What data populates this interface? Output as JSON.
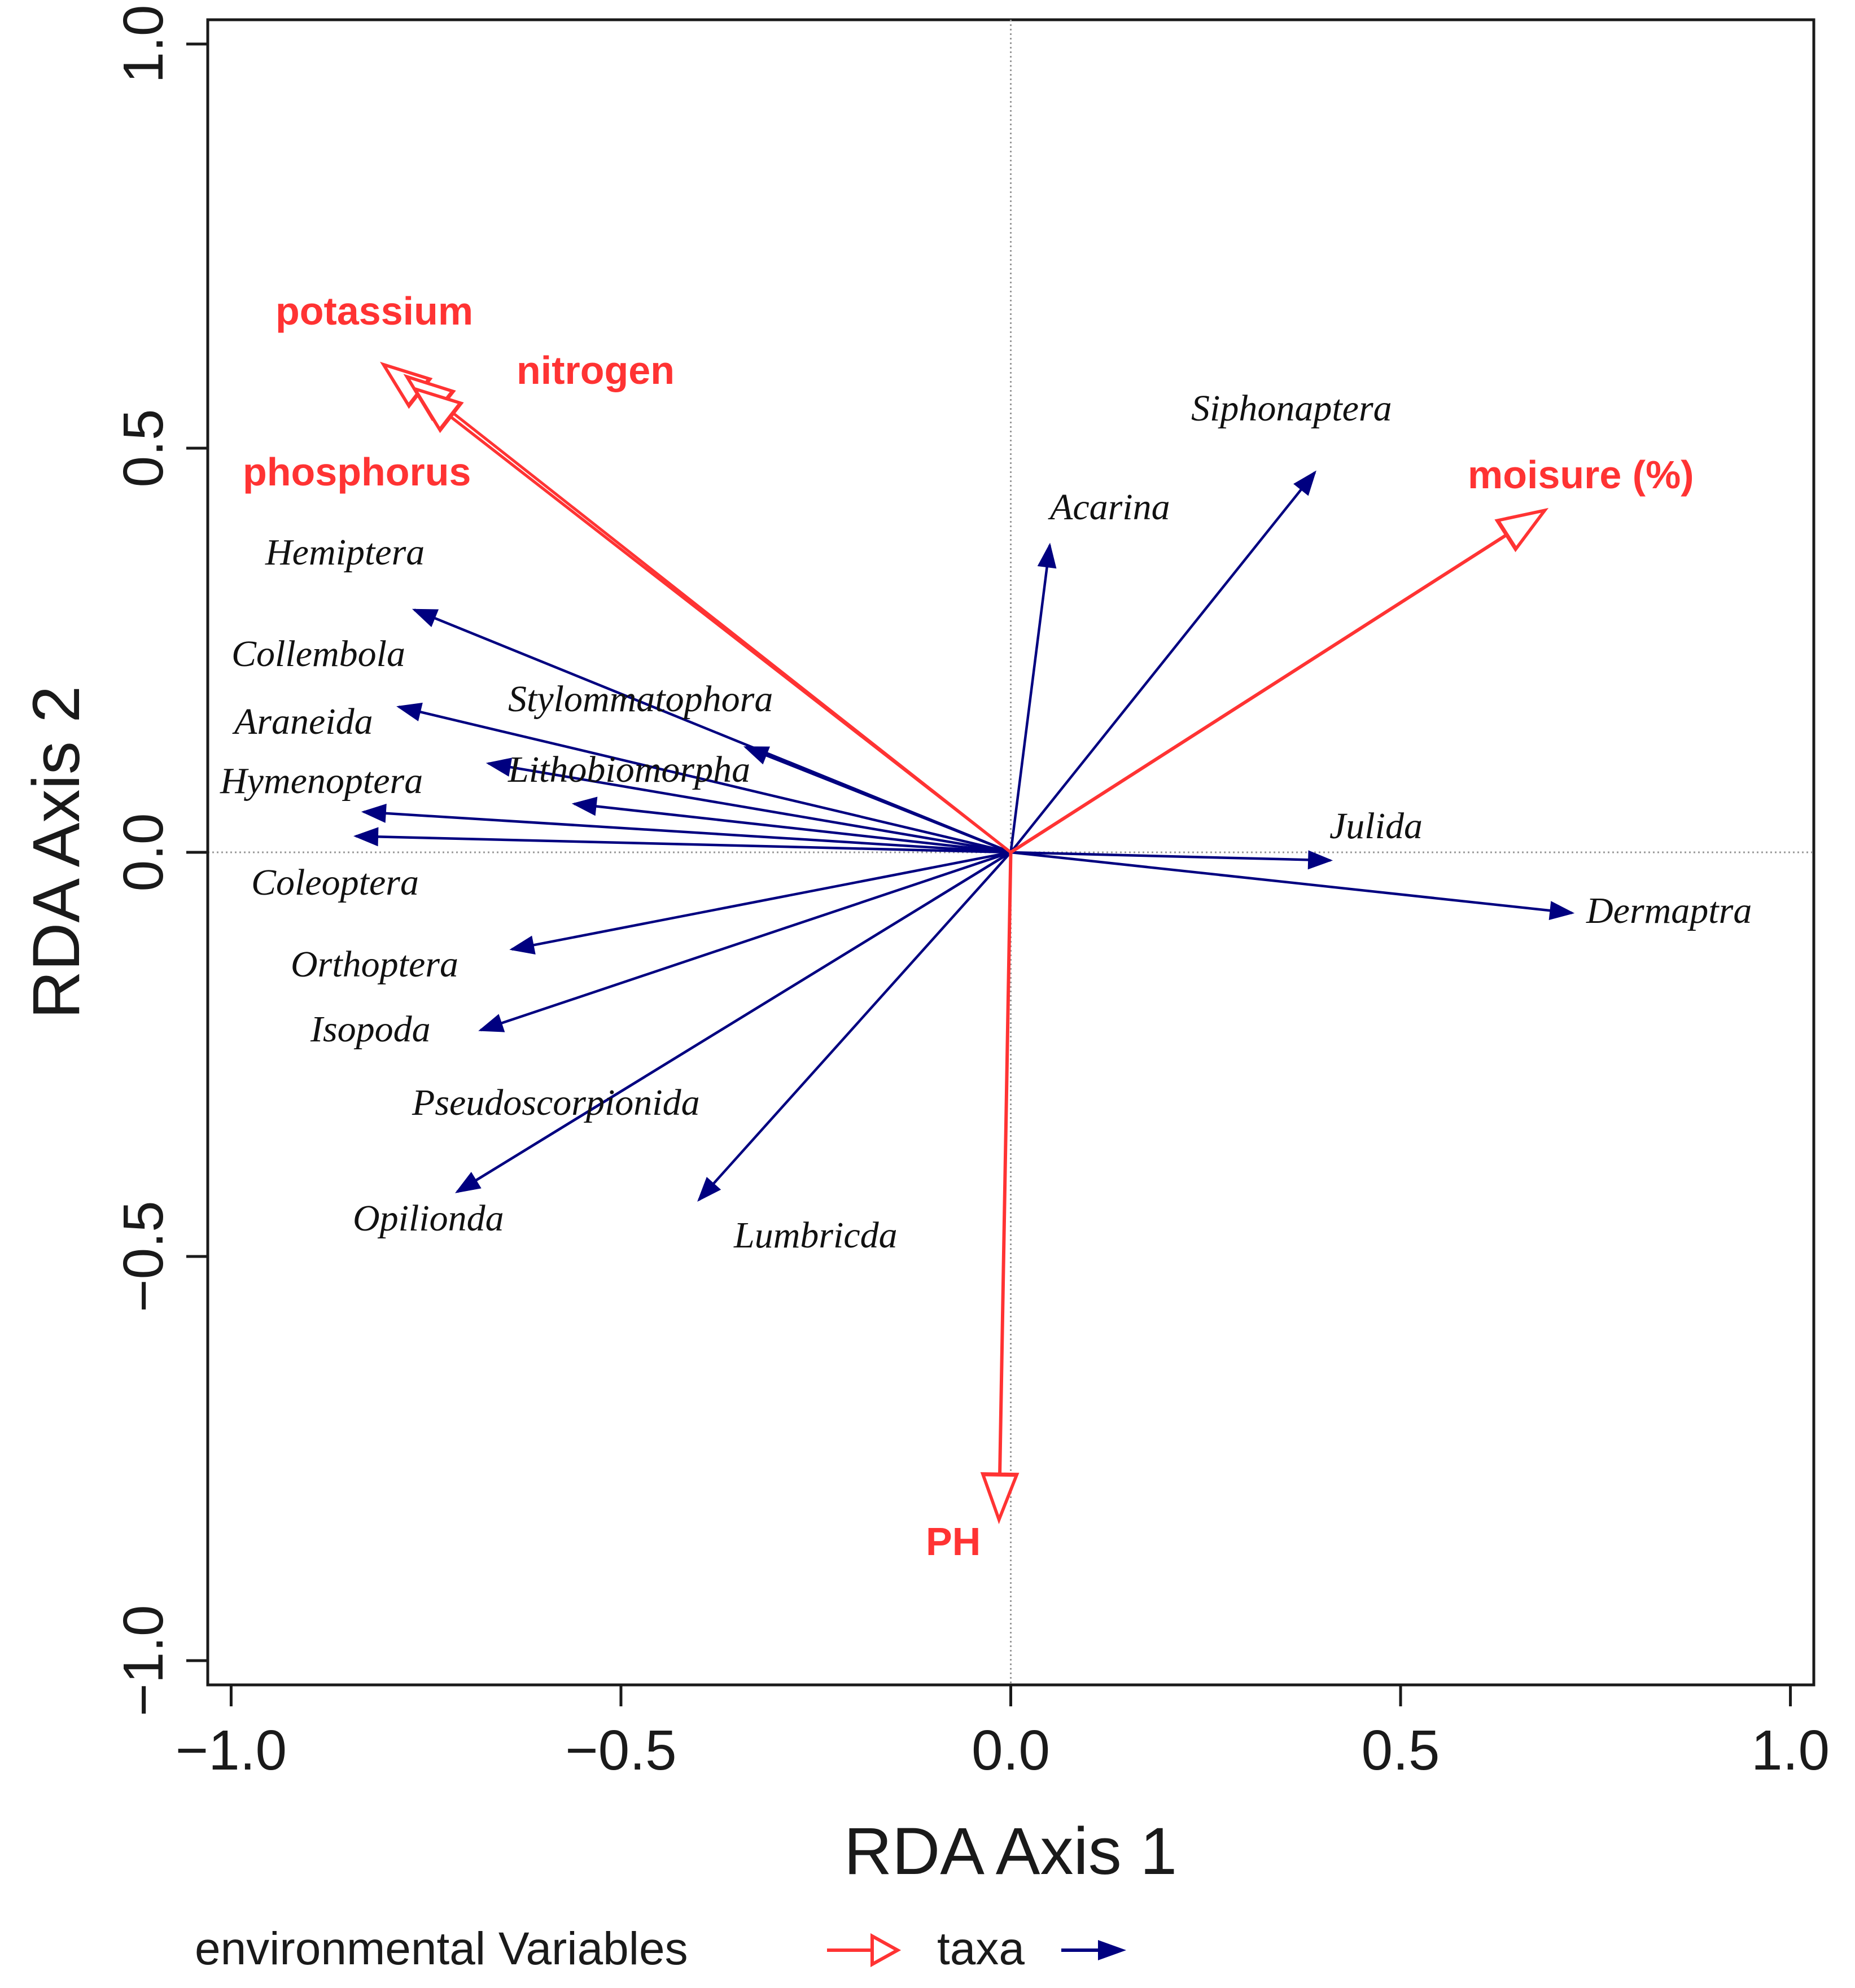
{
  "chart_data": {
    "type": "biplot",
    "xlabel": "RDA Axis 1",
    "ylabel": "RDA Axis 2",
    "xlim": [
      -1.03,
      1.03
    ],
    "ylim": [
      -1.03,
      1.03
    ],
    "xticks": [
      -1.0,
      -0.5,
      0.0,
      0.5,
      1.0
    ],
    "yticks": [
      -1.0,
      -0.5,
      0.0,
      0.5,
      1.0
    ],
    "xtick_labels": [
      "−1.0",
      "−0.5",
      "0.0",
      "0.5",
      "1.0"
    ],
    "ytick_labels": [
      "−1.0",
      "−0.5",
      "0.0",
      "0.5",
      "1.0"
    ],
    "reference_lines": {
      "x": 0,
      "y": 0,
      "style": "dotted"
    },
    "colors": {
      "environmental": "#ff3333",
      "taxa": "#000080"
    },
    "legend": {
      "placement": "bottom",
      "entries": [
        {
          "label": "environmental Variables",
          "marker": "open-arrow",
          "color": "#ff3333"
        },
        {
          "label": "taxa",
          "marker": "filled-arrow",
          "color": "#000080"
        }
      ]
    },
    "environmental_variables": [
      {
        "name": "potassium",
        "x": -0.8,
        "y": 0.6
      },
      {
        "name": "nitrogen",
        "x": -0.77,
        "y": 0.585
      },
      {
        "name": "phosphorus",
        "x": -0.76,
        "y": 0.57
      },
      {
        "name": "moisure (%)",
        "x": 0.68,
        "y": 0.42
      },
      {
        "name": "PH",
        "x": -0.015,
        "y": -0.82
      }
    ],
    "taxa": [
      {
        "name": "Hemiptera",
        "x": -0.765,
        "y": 0.3
      },
      {
        "name": "Collembola",
        "x": -0.785,
        "y": 0.18
      },
      {
        "name": "Araneida",
        "x": -0.67,
        "y": 0.11
      },
      {
        "name": "Hymenoptera",
        "x": -0.83,
        "y": 0.05
      },
      {
        "name": "Coleoptera",
        "x": -0.84,
        "y": 0.02
      },
      {
        "name": "Stylommatophora",
        "x": -0.34,
        "y": 0.13
      },
      {
        "name": "Lithobiomorpha",
        "x": -0.56,
        "y": 0.06
      },
      {
        "name": "Orthoptera",
        "x": -0.64,
        "y": -0.12
      },
      {
        "name": "Isopoda",
        "x": -0.68,
        "y": -0.22
      },
      {
        "name": "Pseudoscorpionida",
        "x": -0.71,
        "y": -0.42
      },
      {
        "name": "Opilionda",
        "x": -0.71,
        "y": -0.42
      },
      {
        "name": "Lumbricda",
        "x": -0.4,
        "y": -0.43
      },
      {
        "name": "Acarina",
        "x": 0.05,
        "y": 0.38
      },
      {
        "name": "Siphonaptera",
        "x": 0.39,
        "y": 0.47
      },
      {
        "name": "Julida",
        "x": 0.41,
        "y": -0.01
      },
      {
        "name": "Dermaptra",
        "x": 0.72,
        "y": -0.075
      }
    ]
  },
  "labels": {
    "env": {
      "potassium": "potassium",
      "nitrogen": "nitrogen",
      "phosphorus": "phosphorus",
      "moisture": "moisure (%)",
      "ph": "PH"
    },
    "taxa": {
      "siphonaptera": "Siphonaptera",
      "acarina": "Acarina",
      "hemiptera": "Hemiptera",
      "collembola": "Collembola",
      "stylommatophora": "Stylommatophora",
      "araneida": "Araneida",
      "hymenoptera": "Hymenoptera",
      "lithobiomorpha": "Lithobiomorpha",
      "julida": "Julida",
      "coleoptera": "Coleoptera",
      "dermaptra": "Dermaptra",
      "orthoptera": "Orthoptera",
      "isopoda": "Isopoda",
      "pseudoscorpionida": "Pseudoscorpionida",
      "opilionda": "Opilionda",
      "lumbricda": "Lumbricda"
    }
  }
}
